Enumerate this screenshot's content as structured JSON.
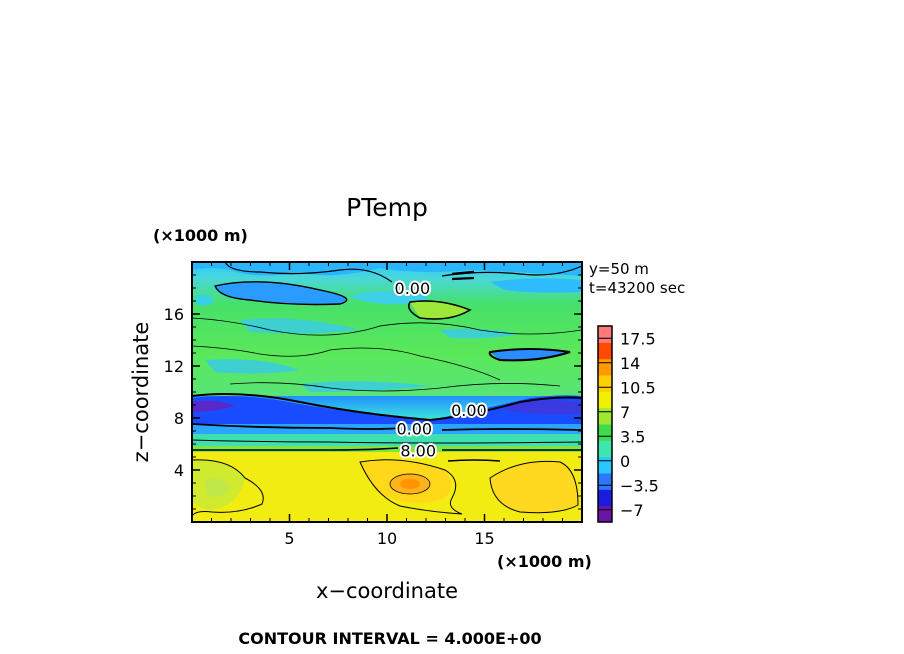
{
  "chart_data": {
    "type": "heatmap",
    "title": "PTemp",
    "xlabel": "x−coordinate",
    "ylabel": "z−coordinate",
    "x_unit": "(×1000 m)",
    "y_unit": "(×1000 m)",
    "xlim": [
      0,
      20
    ],
    "ylim": [
      0,
      20
    ],
    "x_ticks": [
      5,
      10,
      15
    ],
    "y_ticks": [
      4,
      8,
      12,
      16
    ],
    "x_tick_labels": [
      "5",
      "10",
      "15"
    ],
    "y_tick_labels": [
      "4",
      "8",
      "12",
      "16"
    ],
    "annotations": [
      "y=50 m",
      "t=43200 sec"
    ],
    "contour_labels": [
      {
        "text": "0.00",
        "x": 11.3,
        "z": 18.0
      },
      {
        "text": "0.00",
        "x": 14.2,
        "z": 8.6
      },
      {
        "text": "0.00",
        "x": 11.4,
        "z": 7.2
      },
      {
        "text": "8.00",
        "x": 11.6,
        "z": 5.5
      }
    ],
    "colorbar": {
      "tick_labels": [
        "17.5",
        "14",
        "10.5",
        "7",
        "3.5",
        "0",
        "−3.5",
        "−7"
      ],
      "tick_values": [
        17.5,
        14,
        10.5,
        7,
        3.5,
        0,
        -3.5,
        -7
      ],
      "range": [
        -8.75,
        19.25
      ],
      "colors": [
        "#6a14a8",
        "#1c1ce0",
        "#2a78ff",
        "#28c8ff",
        "#3ce8b0",
        "#3cdc4c",
        "#a0e830",
        "#f0f000",
        "#ffd000",
        "#ff9a00",
        "#ff4a00",
        "#ff7a7a"
      ]
    },
    "footer": "CONTOUR INTERVAL = 4.000E+00"
  }
}
